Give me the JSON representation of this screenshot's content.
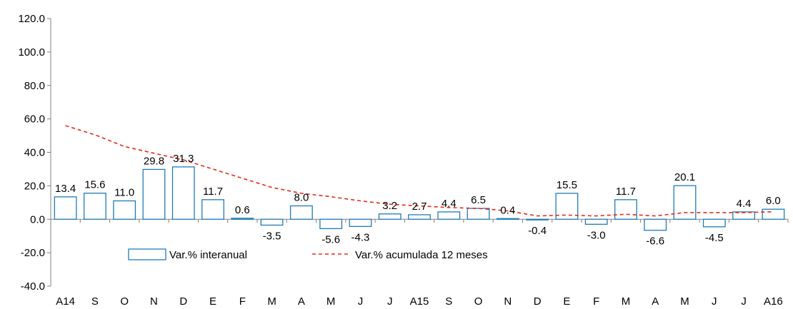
{
  "chart_data": {
    "type": "bar",
    "categories": [
      "A14",
      "S",
      "O",
      "N",
      "D",
      "E",
      "F",
      "M",
      "A",
      "M",
      "J",
      "J",
      "A15",
      "S",
      "O",
      "N",
      "D",
      "E",
      "F",
      "M",
      "A",
      "M",
      "J",
      "J",
      "A16"
    ],
    "series": [
      {
        "name": "Var.% interanual",
        "type": "bar",
        "values": [
          13.4,
          15.6,
          11.0,
          29.8,
          31.3,
          11.7,
          0.6,
          -3.5,
          8.0,
          -5.6,
          -4.3,
          3.2,
          2.7,
          4.4,
          6.5,
          0.4,
          -0.4,
          15.5,
          -3.0,
          11.7,
          -6.6,
          20.1,
          -4.5,
          4.4,
          6.0
        ],
        "labels": [
          "13.4",
          "15.6",
          "11.0",
          "29.8",
          "31.3",
          "11.7",
          "0.6",
          "-3.5",
          "8.0",
          "-5.6",
          "-4.3",
          "3.2",
          "2.7",
          "4.4",
          "6.5",
          "0.4",
          "-0.4",
          "15.5",
          "-3.0",
          "11.7",
          "-6.6",
          "20.1",
          "-4.5",
          "4.4",
          "6.0"
        ]
      },
      {
        "name": "Var.% acumulada 12 meses",
        "type": "line",
        "values": [
          56.0,
          50.5,
          43.5,
          39.5,
          35.5,
          30.0,
          24.5,
          19.0,
          15.5,
          13.5,
          11.0,
          9.0,
          8.0,
          7.0,
          6.5,
          5.0,
          2.0,
          2.5,
          2.0,
          3.0,
          2.0,
          4.0,
          4.0,
          4.0,
          4.5
        ]
      }
    ],
    "y_ticks": [
      "120.0",
      "100.0",
      "80.0",
      "60.0",
      "40.0",
      "20.0",
      "0.0",
      "-20.0",
      "-40.0"
    ],
    "ylim": [
      -40,
      120
    ],
    "legend_position": "bottom-left, inside plot",
    "grid": false,
    "colors": {
      "bar_edge": "#1f7bb8",
      "line": "#e8291c",
      "axis": "#808080"
    }
  }
}
